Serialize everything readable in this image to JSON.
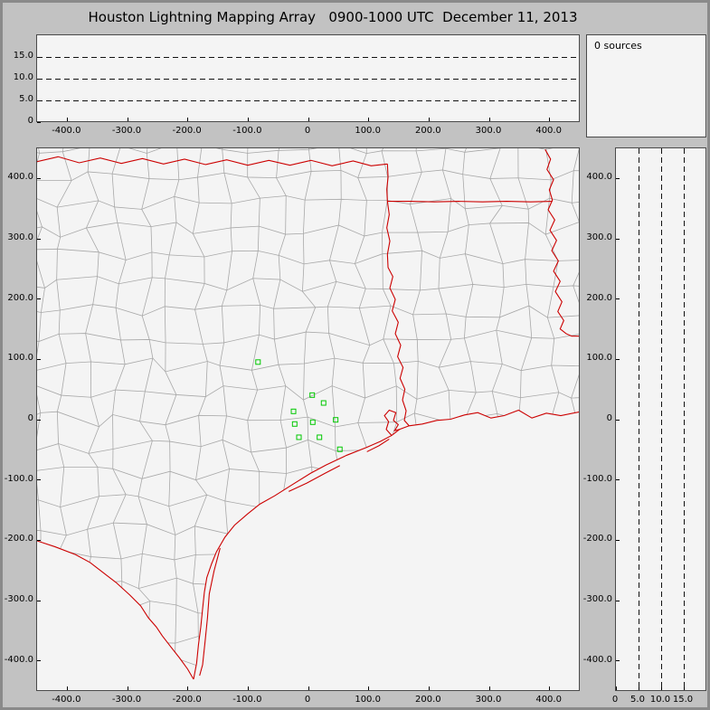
{
  "title": "Houston Lightning Mapping Array   0900-1000 UTC  December 11, 2013",
  "sources_panel": {
    "label": "0 sources"
  },
  "colors": {
    "background": "#c2c2c2",
    "panel_bg": "#f4f4f4",
    "border_red": "#cc0000",
    "county_gray": "#a8a8a8",
    "station_green": "#00c800",
    "dash_black": "#111111"
  },
  "chart_data": {
    "type": "scatter",
    "title": "Houston Lightning Mapping Array 0900-1000 UTC December 11, 2013",
    "sources_count": 0,
    "legend_position": "none",
    "grid": "dashed altitude reference lines at 5, 10, 15 km",
    "panels": [
      {
        "id": "alt-ew",
        "xlim": [
          -450,
          450
        ],
        "ylim": [
          0,
          20
        ],
        "xticks": [
          [
            -400,
            "-400.0"
          ],
          [
            -300,
            "-300.0"
          ],
          [
            -200,
            "-200.0"
          ],
          [
            -100,
            "-100.0"
          ],
          [
            0,
            "0"
          ],
          [
            100,
            "100.0"
          ],
          [
            200,
            "200.0"
          ],
          [
            300,
            "300.0"
          ],
          [
            400,
            "400.0"
          ]
        ],
        "yticks": [
          [
            15,
            "15.0"
          ],
          [
            10,
            "10.0"
          ],
          [
            5,
            "5.0"
          ],
          [
            0,
            "0"
          ]
        ],
        "dashed_levels": [
          5,
          10,
          15
        ],
        "points": []
      },
      {
        "id": "map",
        "xlim": [
          -450,
          450
        ],
        "ylim": [
          -450,
          450
        ],
        "xticks": [
          [
            -400,
            "-400.0"
          ],
          [
            -300,
            "-300.0"
          ],
          [
            -200,
            "-200.0"
          ],
          [
            -100,
            "-100.0"
          ],
          [
            0,
            "0"
          ],
          [
            100,
            "100.0"
          ],
          [
            200,
            "200.0"
          ],
          [
            300,
            "300.0"
          ],
          [
            400,
            "400.0"
          ]
        ],
        "yticks": [
          [
            400,
            "400.0"
          ],
          [
            300,
            "300.0"
          ],
          [
            200,
            "200.0"
          ],
          [
            100,
            "100.0"
          ],
          [
            0,
            "0"
          ],
          [
            -100,
            "-100.0"
          ],
          [
            -200,
            "-200.0"
          ],
          [
            -300,
            "-300.0"
          ],
          [
            -400,
            "-400.0"
          ]
        ],
        "stations_km": [
          [
            -83,
            95
          ],
          [
            7,
            40
          ],
          [
            -24,
            13
          ],
          [
            26,
            27
          ],
          [
            -22,
            -8
          ],
          [
            8,
            -5
          ],
          [
            46,
            -1
          ],
          [
            -15,
            -30
          ],
          [
            19,
            -30
          ],
          [
            53,
            -50
          ]
        ],
        "points": []
      },
      {
        "id": "alt-ns",
        "xlim": [
          0,
          20
        ],
        "ylim": [
          -450,
          450
        ],
        "xticks": [
          [
            0,
            "0"
          ],
          [
            5,
            "5.0"
          ],
          [
            10,
            "10.0"
          ],
          [
            15,
            "15.0"
          ]
        ],
        "yticks": [
          [
            400,
            "400.0"
          ],
          [
            300,
            "300.0"
          ],
          [
            200,
            "200.0"
          ],
          [
            100,
            "100.0"
          ],
          [
            0,
            "0"
          ],
          [
            -100,
            "-100.0"
          ],
          [
            -200,
            "-200.0"
          ],
          [
            -300,
            "-300.0"
          ],
          [
            -400,
            "-400.0"
          ]
        ],
        "dashed_levels": [
          5,
          10,
          15
        ],
        "points": []
      }
    ]
  },
  "map_geometry": {
    "coastline": [
      [
        450,
        12
      ],
      [
        420,
        6
      ],
      [
        396,
        10
      ],
      [
        372,
        2
      ],
      [
        350,
        15
      ],
      [
        326,
        6
      ],
      [
        304,
        2
      ],
      [
        282,
        11
      ],
      [
        260,
        7
      ],
      [
        237,
        0
      ],
      [
        214,
        -2
      ],
      [
        190,
        -8
      ],
      [
        168,
        -11
      ],
      [
        152,
        -17
      ],
      [
        139,
        -27
      ],
      [
        120,
        -37
      ],
      [
        97,
        -47
      ],
      [
        64,
        -60
      ],
      [
        30,
        -76
      ],
      [
        4,
        -90
      ],
      [
        -28,
        -110
      ],
      [
        -55,
        -127
      ],
      [
        -80,
        -141
      ],
      [
        -100,
        -157
      ],
      [
        -122,
        -176
      ],
      [
        -138,
        -196
      ],
      [
        -152,
        -220
      ],
      [
        -160,
        -240
      ],
      [
        -168,
        -263
      ],
      [
        -172,
        -287
      ],
      [
        -175,
        -315
      ],
      [
        -178,
        -345
      ],
      [
        -182,
        -375
      ],
      [
        -185,
        -405
      ],
      [
        -190,
        -432
      ]
    ],
    "rio_grande": [
      [
        -450,
        -202
      ],
      [
        -420,
        -212
      ],
      [
        -386,
        -225
      ],
      [
        -362,
        -238
      ],
      [
        -340,
        -255
      ],
      [
        -318,
        -272
      ],
      [
        -296,
        -292
      ],
      [
        -278,
        -310
      ],
      [
        -265,
        -330
      ],
      [
        -252,
        -345
      ],
      [
        -242,
        -360
      ],
      [
        -228,
        -378
      ],
      [
        -213,
        -397
      ],
      [
        -200,
        -415
      ],
      [
        -190,
        -432
      ]
    ],
    "state_borders": [
      [
        [
          -450,
          428
        ],
        [
          -415,
          436
        ],
        [
          -380,
          426
        ],
        [
          -345,
          434
        ],
        [
          -310,
          425
        ],
        [
          -275,
          433
        ],
        [
          -240,
          424
        ],
        [
          -205,
          432
        ],
        [
          -170,
          423
        ],
        [
          -135,
          431
        ],
        [
          -100,
          422
        ],
        [
          -65,
          430
        ],
        [
          -30,
          422
        ],
        [
          5,
          430
        ],
        [
          40,
          421
        ],
        [
          75,
          429
        ],
        [
          105,
          421
        ],
        [
          132,
          424
        ]
      ],
      [
        [
          132,
          424
        ],
        [
          133,
          402
        ],
        [
          131,
          382
        ],
        [
          132,
          362
        ]
      ],
      [
        [
          132,
          362
        ],
        [
          170,
          362
        ],
        [
          210,
          361
        ],
        [
          250,
          362
        ],
        [
          290,
          361
        ],
        [
          330,
          362
        ],
        [
          370,
          361
        ],
        [
          406,
          362
        ]
      ],
      [
        [
          132,
          362
        ],
        [
          135,
          340
        ],
        [
          131,
          318
        ],
        [
          136,
          296
        ],
        [
          132,
          274
        ],
        [
          133,
          252
        ],
        [
          141,
          237
        ],
        [
          136,
          218
        ],
        [
          145,
          199
        ],
        [
          140,
          180
        ],
        [
          150,
          161
        ],
        [
          145,
          142
        ],
        [
          154,
          123
        ],
        [
          149,
          104
        ],
        [
          158,
          86
        ],
        [
          153,
          68
        ],
        [
          161,
          50
        ],
        [
          157,
          32
        ],
        [
          163,
          14
        ],
        [
          160,
          -2
        ],
        [
          168,
          -11
        ]
      ],
      [
        [
          394,
          448
        ],
        [
          403,
          432
        ],
        [
          397,
          415
        ],
        [
          408,
          398
        ],
        [
          401,
          381
        ],
        [
          406,
          364
        ],
        [
          399,
          348
        ],
        [
          410,
          331
        ],
        [
          402,
          314
        ],
        [
          413,
          297
        ],
        [
          405,
          280
        ],
        [
          416,
          263
        ],
        [
          408,
          246
        ],
        [
          419,
          229
        ],
        [
          411,
          212
        ],
        [
          422,
          195
        ],
        [
          415,
          179
        ],
        [
          425,
          164
        ],
        [
          419,
          150
        ],
        [
          429,
          142
        ],
        [
          438,
          138
        ]
      ],
      [
        [
          438,
          138
        ],
        [
          450,
          138
        ]
      ]
    ],
    "islands": [
      [
        [
          -146,
          -214
        ],
        [
          -156,
          -252
        ],
        [
          -164,
          -290
        ],
        [
          -167,
          -330
        ],
        [
          -171,
          -370
        ],
        [
          -175,
          -408
        ],
        [
          -180,
          -426
        ]
      ],
      [
        [
          98,
          -54
        ],
        [
          118,
          -44
        ],
        [
          135,
          -33
        ]
      ],
      [
        [
          -32,
          -120
        ],
        [
          -2,
          -106
        ],
        [
          28,
          -90
        ],
        [
          53,
          -77
        ]
      ]
    ],
    "bays": [
      [
        [
          139,
          -27
        ],
        [
          130,
          -17
        ],
        [
          134,
          -4
        ],
        [
          127,
          6
        ],
        [
          135,
          15
        ],
        [
          146,
          11
        ],
        [
          142,
          -2
        ],
        [
          150,
          -9
        ],
        [
          144,
          -19
        ],
        [
          152,
          -17
        ]
      ]
    ]
  },
  "county_grid": {
    "cell_km": 45,
    "jitter_km": 13,
    "seed": 3
  }
}
